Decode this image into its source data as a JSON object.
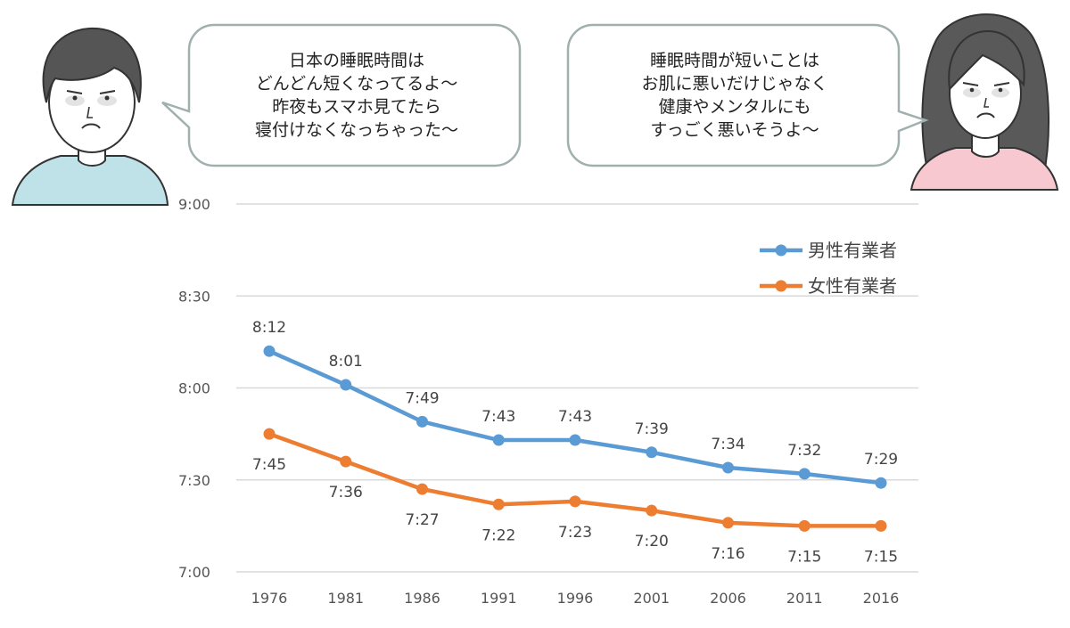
{
  "speech": {
    "man": [
      "日本の睡眠時間は",
      "どんどん短くなってるよ〜",
      "昨夜もスマホ見てたら",
      "寝付けなくなっちゃった〜"
    ],
    "woman": [
      "睡眠時間が短いことは",
      "お肌に悪いだけじゃなく",
      "健康やメンタルにも",
      "すっごく悪いそうよ〜"
    ]
  },
  "colors": {
    "men": "#5b9bd5",
    "women": "#ed7d31",
    "grid": "#d9d9d9",
    "bubble_border": "#9fb0ae",
    "man_shirt": "#bfe1e8",
    "woman_shirt": "#f7c8cf"
  },
  "chart_data": {
    "type": "line",
    "categories": [
      "1976",
      "1981",
      "1986",
      "1991",
      "1996",
      "2001",
      "2006",
      "2011",
      "2016"
    ],
    "y_ticks": [
      "9:00",
      "8:30",
      "8:00",
      "7:30",
      "7:00"
    ],
    "ylim": [
      420,
      540
    ],
    "grid": true,
    "legend_position": "top-right",
    "series": [
      {
        "name": "男性有業者",
        "values": [
          492,
          481,
          469,
          463,
          463,
          459,
          454,
          452,
          449
        ],
        "labels": [
          "8:12",
          "8:01",
          "7:49",
          "7:43",
          "7:43",
          "7:39",
          "7:34",
          "7:32",
          "7:29"
        ]
      },
      {
        "name": "女性有業者",
        "values": [
          465,
          456,
          447,
          442,
          443,
          440,
          436,
          435,
          435
        ],
        "labels": [
          "7:45",
          "7:36",
          "7:27",
          "7:22",
          "7:23",
          "7:20",
          "7:16",
          "7:15",
          "7:15"
        ]
      }
    ]
  }
}
